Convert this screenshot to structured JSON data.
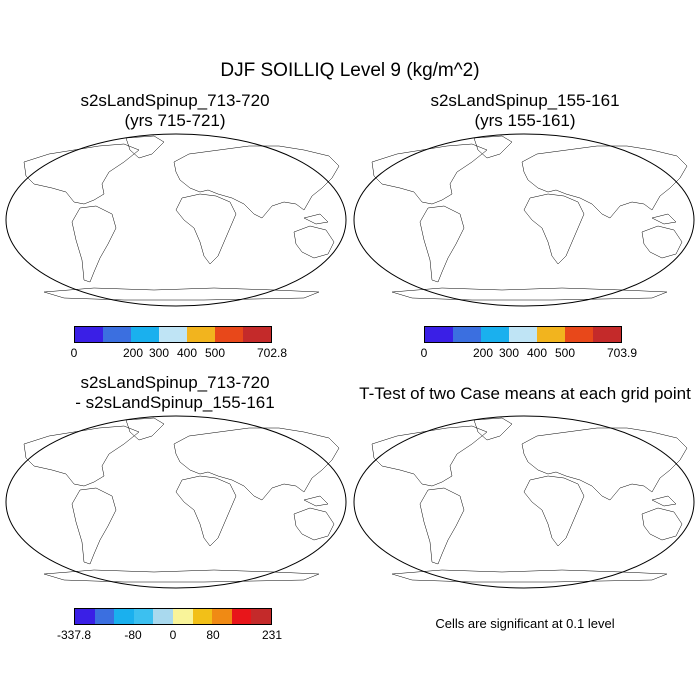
{
  "figure_title": "DJF SOILLIQ Level 9 (kg/m^2)",
  "panels": [
    {
      "title_line1": "s2sLandSpinup_713-720",
      "title_line2": "(yrs 715-721)"
    },
    {
      "title_line1": "s2sLandSpinup_155-161",
      "title_line2": "(yrs 155-161)"
    },
    {
      "title_line1": "s2sLandSpinup_713-720",
      "title_line2": "- s2sLandSpinup_155-161"
    },
    {
      "title_line1": "T-Test of two Case means at each grid point"
    }
  ],
  "significance_note": "Cells are significant at 0.1 level",
  "colorbars": {
    "panel1": {
      "colors": [
        "#3a1fe6",
        "#3b6fe0",
        "#1ab0ee",
        "#bfe4f5",
        "#f2b41e",
        "#e8481a",
        "#c42a2a"
      ],
      "ticks": [
        {
          "label": "0",
          "pos": 0
        },
        {
          "label": "200",
          "pos": 0.3
        },
        {
          "label": "300",
          "pos": 0.43
        },
        {
          "label": "400",
          "pos": 0.57
        },
        {
          "label": "500",
          "pos": 0.71
        },
        {
          "label": "702.8",
          "pos": 1
        }
      ]
    },
    "panel2": {
      "colors": [
        "#3a1fe6",
        "#3b6fe0",
        "#1ab0ee",
        "#bfe4f5",
        "#f2b41e",
        "#e8481a",
        "#c42a2a"
      ],
      "ticks": [
        {
          "label": "0",
          "pos": 0
        },
        {
          "label": "200",
          "pos": 0.3
        },
        {
          "label": "300",
          "pos": 0.43
        },
        {
          "label": "400",
          "pos": 0.57
        },
        {
          "label": "500",
          "pos": 0.71
        },
        {
          "label": "703.9",
          "pos": 1
        }
      ]
    },
    "panel3": {
      "colors": [
        "#3a1fe6",
        "#3b6fe0",
        "#1ab0ee",
        "#3cc0f0",
        "#a9d9ee",
        "#f9f49a",
        "#f2c018",
        "#f08a14",
        "#e8151a",
        "#c42a2a"
      ],
      "ticks": [
        {
          "label": "-337.8",
          "pos": 0
        },
        {
          "label": "-80",
          "pos": 0.3
        },
        {
          "label": "0",
          "pos": 0.5
        },
        {
          "label": "80",
          "pos": 0.7
        },
        {
          "label": "231",
          "pos": 1
        }
      ]
    }
  },
  "chart_data": [
    {
      "type": "heatmap",
      "projection": "Robinson",
      "title": "s2sLandSpinup_713-720 (yrs 715-721)",
      "variable": "SOILLIQ Level 9",
      "units": "kg/m^2",
      "season": "DJF",
      "range": [
        0,
        702.8
      ],
      "contour_levels": [
        0,
        200,
        300,
        400,
        500,
        702.8
      ]
    },
    {
      "type": "heatmap",
      "projection": "Robinson",
      "title": "s2sLandSpinup_155-161 (yrs 155-161)",
      "variable": "SOILLIQ Level 9",
      "units": "kg/m^2",
      "season": "DJF",
      "range": [
        0,
        703.9
      ],
      "contour_levels": [
        0,
        200,
        300,
        400,
        500,
        703.9
      ]
    },
    {
      "type": "heatmap",
      "projection": "Robinson",
      "title": "s2sLandSpinup_713-720 - s2sLandSpinup_155-161",
      "variable": "SOILLIQ Level 9 difference",
      "units": "kg/m^2",
      "range": [
        -337.8,
        231
      ],
      "contour_levels": [
        -337.8,
        -80,
        0,
        80,
        231
      ]
    },
    {
      "type": "heatmap",
      "projection": "Robinson",
      "title": "T-Test of two Case means at each grid point",
      "significance_level": 0.1,
      "note": "Cells are significant at 0.1 level"
    }
  ]
}
